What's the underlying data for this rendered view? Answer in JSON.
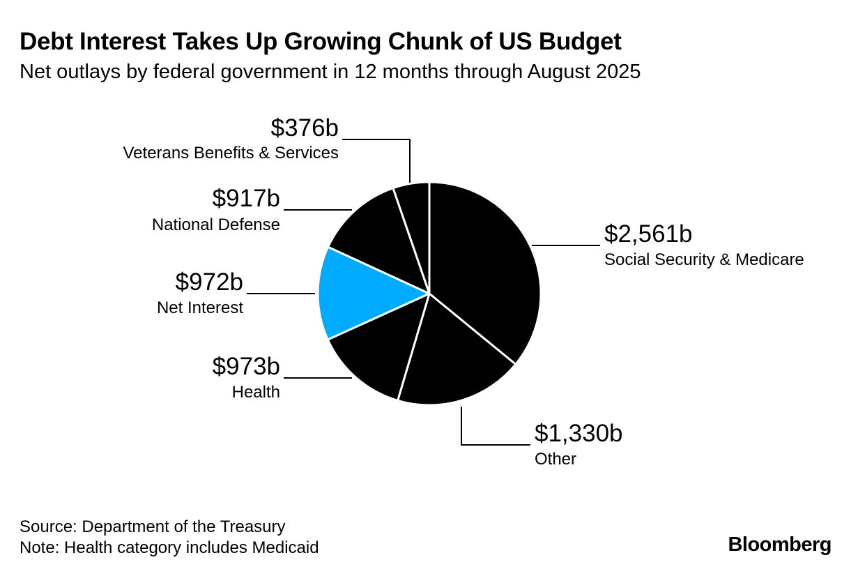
{
  "title": "Debt Interest Takes Up Growing Chunk of US Budget",
  "subtitle": "Net outlays by federal government in 12 months through August 2025",
  "source": "Source: Department of the Treasury",
  "note": "Note: Health category includes Medicaid",
  "brand": "Bloomberg",
  "colors": {
    "default": "#000000",
    "highlight": "#00aaff",
    "divider": "#ffffff"
  },
  "chart_data": {
    "type": "pie",
    "title": "Debt Interest Takes Up Growing Chunk of US Budget",
    "unit": "billion USD",
    "slices": [
      {
        "label": "Social Security & Medicare",
        "value": 2561,
        "value_label": "$2,561b",
        "highlight": false
      },
      {
        "label": "Other",
        "value": 1330,
        "value_label": "$1,330b",
        "highlight": false
      },
      {
        "label": "Health",
        "value": 973,
        "value_label": "$973b",
        "highlight": false
      },
      {
        "label": "Net Interest",
        "value": 972,
        "value_label": "$972b",
        "highlight": true
      },
      {
        "label": "National Defense",
        "value": 917,
        "value_label": "$917b",
        "highlight": false
      },
      {
        "label": "Veterans Benefits & Services",
        "value": 376,
        "value_label": "$376b",
        "highlight": false
      }
    ]
  }
}
